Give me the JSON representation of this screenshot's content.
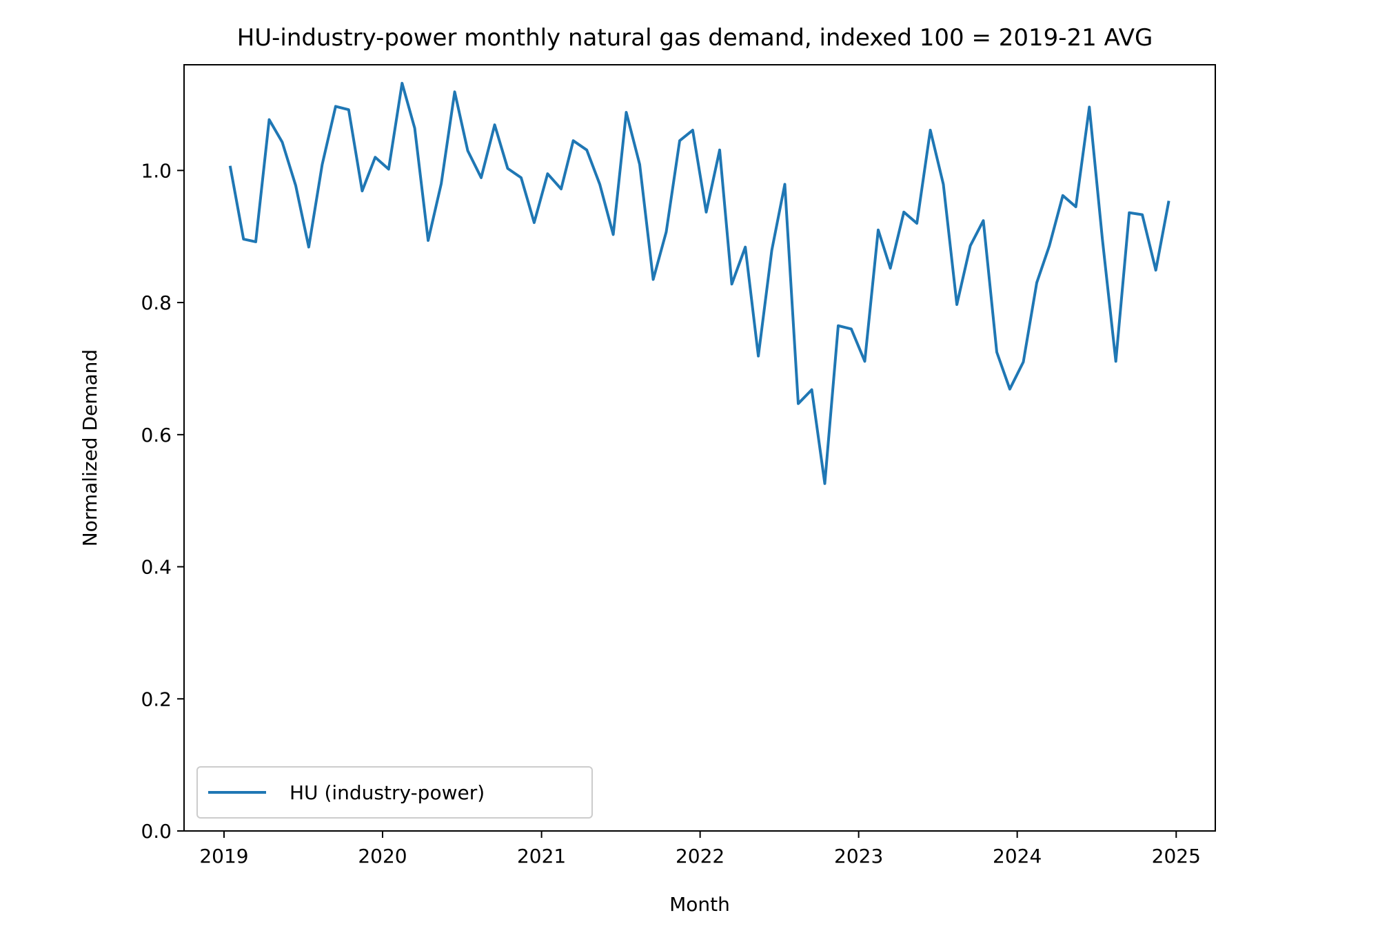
{
  "chart_data": {
    "type": "line",
    "title": "HU-industry-power monthly natural gas demand, indexed 100 = 2019-21 AVG",
    "xlabel": "Month",
    "ylabel": "Normalized Demand",
    "xlim": [
      "2018-10-01",
      "2025-04-01"
    ],
    "ylim": [
      0,
      1.16
    ],
    "x_ticks": [
      "2019-01-01",
      "2020-01-01",
      "2021-01-01",
      "2022-01-01",
      "2023-01-01",
      "2024-01-01",
      "2025-01-01"
    ],
    "x_tick_labels": [
      "2019",
      "2020",
      "2021",
      "2022",
      "2023",
      "2024",
      "2025"
    ],
    "y_ticks": [
      0,
      0.2,
      0.4,
      0.6,
      0.8,
      1.0
    ],
    "y_tick_labels": [
      "0.0",
      "0.2",
      "0.4",
      "0.6",
      "0.8",
      "1.0"
    ],
    "grid": false,
    "legend_position": "lower-left",
    "color": "#1f77b4",
    "series": [
      {
        "name": "HU (industry-power)",
        "x": [
          "2019-01",
          "2019-02",
          "2019-03",
          "2019-04",
          "2019-05",
          "2019-06",
          "2019-07",
          "2019-08",
          "2019-09",
          "2019-10",
          "2019-11",
          "2019-12",
          "2020-01",
          "2020-02",
          "2020-03",
          "2020-04",
          "2020-05",
          "2020-06",
          "2020-07",
          "2020-08",
          "2020-09",
          "2020-10",
          "2020-11",
          "2020-12",
          "2021-01",
          "2021-02",
          "2021-03",
          "2021-04",
          "2021-05",
          "2021-06",
          "2021-07",
          "2021-08",
          "2021-09",
          "2021-10",
          "2021-11",
          "2021-12",
          "2022-01",
          "2022-02",
          "2022-03",
          "2022-04",
          "2022-05",
          "2022-06",
          "2022-07",
          "2022-08",
          "2022-09",
          "2022-10",
          "2022-11",
          "2022-12",
          "2023-01",
          "2023-02",
          "2023-03",
          "2023-04",
          "2023-05",
          "2023-06",
          "2023-07",
          "2023-08",
          "2023-09",
          "2023-10",
          "2023-11",
          "2023-12",
          "2024-01",
          "2024-02",
          "2024-03",
          "2024-04",
          "2024-05",
          "2024-06",
          "2024-07",
          "2024-08",
          "2024-09",
          "2024-10",
          "2024-11",
          "2024-12"
        ],
        "values": [
          1.007,
          0.896,
          0.892,
          1.077,
          1.043,
          0.977,
          0.884,
          1.009,
          1.097,
          1.092,
          0.969,
          1.02,
          1.002,
          1.132,
          1.064,
          0.894,
          0.98,
          1.119,
          1.03,
          0.989,
          1.069,
          1.003,
          0.989,
          0.921,
          0.995,
          0.972,
          1.045,
          1.031,
          0.979,
          0.903,
          1.088,
          1.009,
          0.835,
          0.907,
          1.045,
          1.061,
          0.937,
          1.031,
          0.828,
          0.884,
          0.719,
          0.879,
          0.979,
          0.647,
          0.668,
          0.526,
          0.765,
          0.76,
          0.711,
          0.91,
          0.852,
          0.937,
          0.92,
          1.061,
          0.979,
          0.797,
          0.886,
          0.924,
          0.725,
          0.669,
          0.71,
          0.83,
          0.886,
          0.962,
          0.945,
          1.096,
          0.896,
          0.711,
          0.936,
          0.933,
          0.849,
          0.954
        ]
      }
    ]
  }
}
